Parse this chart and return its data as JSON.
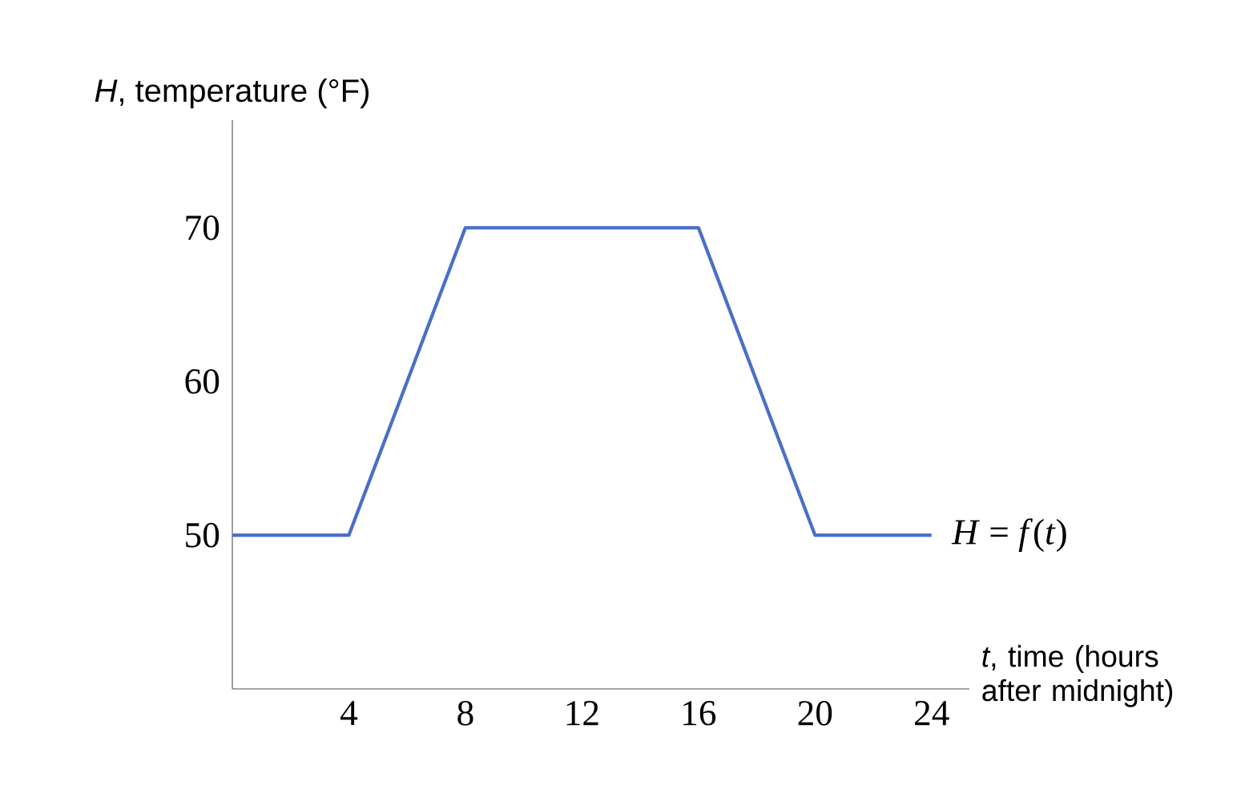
{
  "chart_data": {
    "type": "line",
    "ylabel": "*H*, temperature (°F)",
    "xlabel": "*t*, time (hours after midnight)",
    "x": [
      0,
      4,
      8,
      16,
      20,
      24
    ],
    "series": [
      {
        "color": "#4a6fc9",
        "values": [
          50,
          50,
          70,
          70,
          50,
          50
        ]
      }
    ],
    "xlim": [
      0,
      25.3
    ],
    "xticks": [
      4,
      8,
      12,
      16,
      20,
      24
    ],
    "ylim": [
      40,
      77
    ],
    "yticks": [
      50,
      60,
      70
    ],
    "annotations": [
      {
        "text": "*H* = *f*(*t*)",
        "x": 24,
        "y": 50
      }
    ],
    "grid": false,
    "marker": "none",
    "line_style": "solid"
  }
}
